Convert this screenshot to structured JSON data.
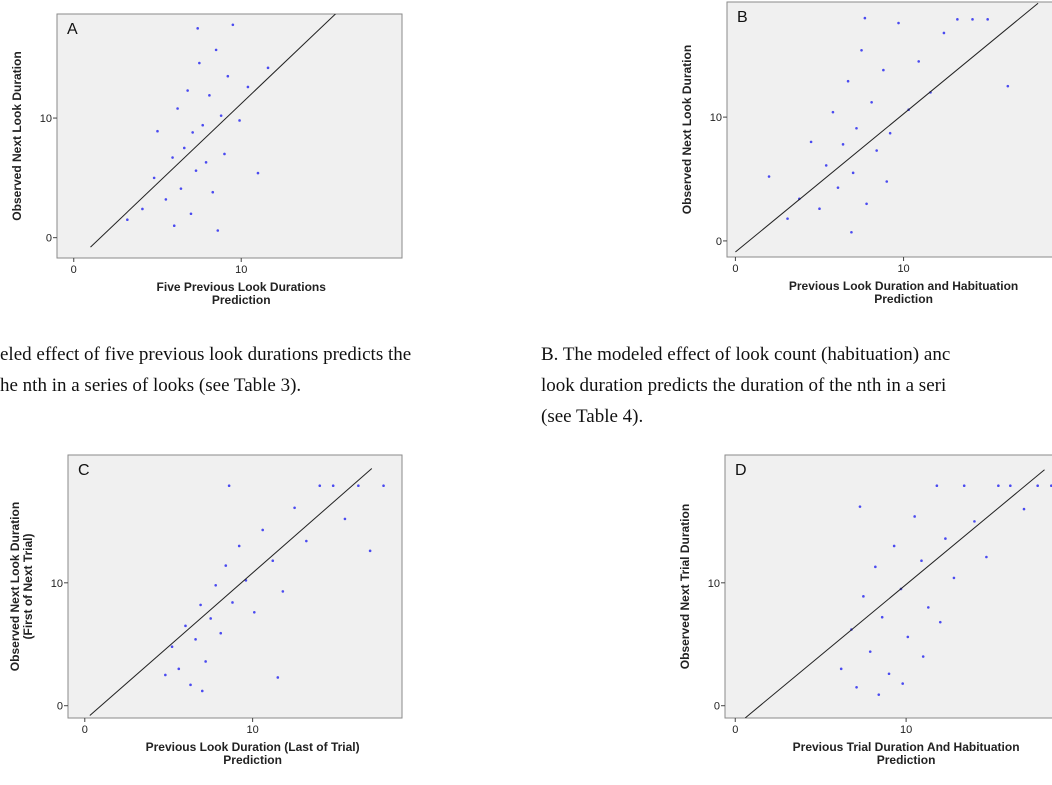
{
  "chart_data": [
    {
      "type": "scatter",
      "panel": "A",
      "ylabel": [
        "Observed Next Look Duration"
      ],
      "xlabel": [
        "Five Previous Look Durations",
        "Prediction"
      ],
      "xlim": [
        -1,
        19.6
      ],
      "ylim": [
        -1.7,
        18.7
      ],
      "xticks": [
        0,
        10
      ],
      "yticks": [
        0,
        10
      ],
      "color": "#4a4af0",
      "fit_line": {
        "x": [
          1,
          16
        ],
        "y": [
          -0.79,
          19.2
        ]
      },
      "x": [
        3.2,
        4.1,
        4.8,
        5.0,
        5.5,
        5.9,
        6.2,
        6.4,
        6.6,
        6.8,
        7.0,
        7.1,
        7.3,
        7.5,
        7.7,
        7.9,
        8.1,
        8.3,
        8.5,
        8.8,
        9.0,
        9.2,
        9.5,
        9.9,
        10.4,
        11.0,
        11.6,
        6.0,
        7.4,
        8.6
      ],
      "y": [
        1.5,
        2.4,
        5.0,
        8.9,
        3.2,
        6.7,
        10.8,
        4.1,
        7.5,
        12.3,
        2.0,
        8.8,
        5.6,
        14.6,
        9.4,
        6.3,
        11.9,
        3.8,
        15.7,
        10.2,
        7.0,
        13.5,
        17.8,
        9.8,
        12.6,
        5.4,
        14.2,
        1.0,
        17.5,
        0.6
      ]
    },
    {
      "type": "scatter",
      "panel": "B",
      "ylabel": [
        "Observed Next Look Duration"
      ],
      "xlabel": [
        "Previous Look Duration and Habituation",
        "Prediction"
      ],
      "xlim": [
        -0.5,
        19.6
      ],
      "ylim": [
        -1.3,
        19.3
      ],
      "xticks": [
        0,
        10
      ],
      "yticks": [
        0,
        10
      ],
      "color": "#4a4af0",
      "fit_line": {
        "x": [
          0,
          18
        ],
        "y": [
          -0.9,
          19.2
        ]
      },
      "x": [
        2.0,
        3.1,
        3.8,
        4.5,
        5.0,
        5.4,
        5.8,
        6.1,
        6.4,
        6.7,
        7.0,
        7.2,
        7.5,
        7.8,
        8.1,
        8.4,
        8.8,
        9.2,
        9.7,
        10.3,
        10.9,
        11.6,
        12.4,
        13.2,
        14.1,
        15.0,
        16.2,
        6.9,
        7.7,
        9.0
      ],
      "y": [
        5.2,
        1.8,
        3.4,
        8.0,
        2.6,
        6.1,
        10.4,
        4.3,
        7.8,
        12.9,
        5.5,
        9.1,
        15.4,
        3.0,
        11.2,
        7.3,
        13.8,
        8.7,
        17.6,
        10.6,
        14.5,
        12.0,
        16.8,
        17.9,
        17.9,
        17.9,
        12.5,
        0.7,
        18.0,
        4.8
      ]
    },
    {
      "type": "scatter",
      "panel": "C",
      "ylabel": [
        "Observed Next Look Duration",
        "(First of Next Trial)"
      ],
      "xlabel": [
        "Previous Look Duration (Last of Trial)",
        "Prediction"
      ],
      "xlim": [
        -1,
        18.9
      ],
      "ylim": [
        -1,
        20.4
      ],
      "xticks": [
        0,
        10
      ],
      "yticks": [
        0,
        10
      ],
      "color": "#4a4af0",
      "fit_line": {
        "x": [
          0.3,
          17.1
        ],
        "y": [
          -0.8,
          19.3
        ]
      },
      "x": [
        4.8,
        5.2,
        5.6,
        6.0,
        6.3,
        6.6,
        6.9,
        7.2,
        7.5,
        7.8,
        8.1,
        8.4,
        8.8,
        9.2,
        9.6,
        10.1,
        10.6,
        11.2,
        11.8,
        12.5,
        13.2,
        14.0,
        14.8,
        15.5,
        16.3,
        17.0,
        17.8,
        7.0,
        8.6,
        11.5
      ],
      "y": [
        2.5,
        4.8,
        3.0,
        6.5,
        1.7,
        5.4,
        8.2,
        3.6,
        7.1,
        9.8,
        5.9,
        11.4,
        8.4,
        13.0,
        10.2,
        7.6,
        14.3,
        11.8,
        9.3,
        16.1,
        13.4,
        17.9,
        17.9,
        15.2,
        17.9,
        12.6,
        17.9,
        1.2,
        17.9,
        2.3
      ]
    },
    {
      "type": "scatter",
      "panel": "D",
      "ylabel": [
        "Observed Next Trial Duration"
      ],
      "xlabel": [
        "Previous Trial Duration And Habituation",
        "Prediction"
      ],
      "xlim": [
        -0.6,
        19.3
      ],
      "ylim": [
        -1,
        20.4
      ],
      "xticks": [
        0,
        10
      ],
      "yticks": [
        0,
        10
      ],
      "color": "#4a4af0",
      "fit_line": {
        "x": [
          0.58,
          18.1
        ],
        "y": [
          -1,
          19.2
        ]
      },
      "x": [
        6.2,
        6.8,
        7.1,
        7.5,
        7.9,
        8.2,
        8.6,
        9.0,
        9.3,
        9.7,
        10.1,
        10.5,
        10.9,
        11.3,
        11.8,
        12.3,
        12.8,
        13.4,
        14.0,
        14.7,
        15.4,
        16.1,
        16.9,
        17.7,
        18.5,
        8.4,
        9.8,
        11.0,
        12.0,
        7.3
      ],
      "y": [
        3.0,
        6.2,
        1.5,
        8.9,
        4.4,
        11.3,
        7.2,
        2.6,
        13.0,
        9.5,
        5.6,
        15.4,
        11.8,
        8.0,
        17.9,
        13.6,
        10.4,
        17.9,
        15.0,
        12.1,
        17.9,
        17.9,
        16.0,
        17.9,
        17.9,
        0.9,
        1.8,
        4.0,
        6.8,
        16.2
      ]
    }
  ],
  "captions": [
    [
      "eled effect of five previous look durations predicts the",
      "he nth in a series of looks (see Table 3)."
    ],
    [
      "B. The modeled effect of look count (habituation) anc",
      "look duration predicts the duration of the nth in a seri",
      "(see Table 4)."
    ]
  ]
}
